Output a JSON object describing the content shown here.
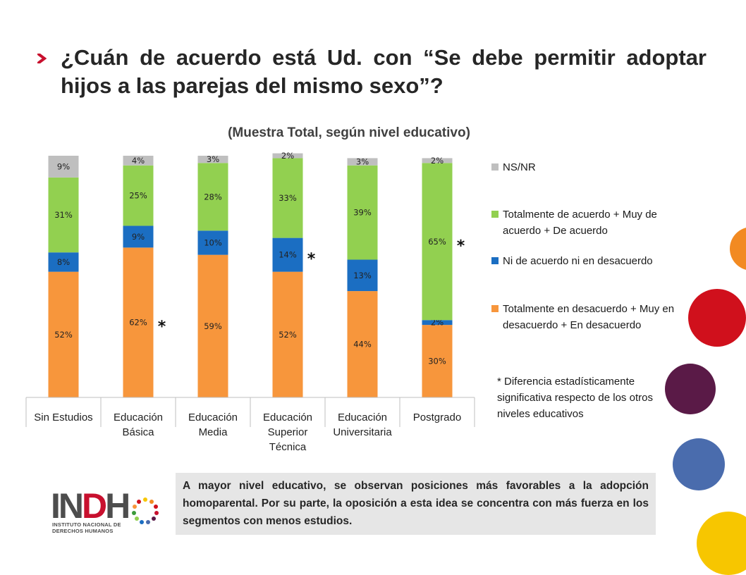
{
  "slide": {
    "title": "¿Cuán de acuerdo está Ud. con “Se debe permitir adoptar hijos a las parejas del mismo sexo”?",
    "note": "* Diferencia estadísticamente significativa respecto de los otros niveles educativos",
    "summary": "A mayor nivel educativo, se observan posiciones más favorables a la adopción homoparental. Por su parte, la oposición a esta idea se concentra con más fuerza en los segmentos con menos estudios.",
    "logo": {
      "word_gray_1": "IN",
      "word_red": "D",
      "word_gray_2": "H",
      "line1": "INSTITUTO NACIONAL DE",
      "line2": "DERECHOS HUMANOS"
    },
    "colors": {
      "accent_red": "#c8102e",
      "deco_orange": "#f28a22",
      "deco_red": "#d0101c",
      "deco_purple": "#5a1a47",
      "deco_blue": "#4a6cad",
      "deco_yellow": "#f7c600"
    }
  },
  "chart_data": {
    "type": "bar",
    "stacked": true,
    "title": "(Muestra Total, según nivel educativo)",
    "categories": [
      "Sin Estudios",
      "Educación Básica",
      "Educación Media",
      "Educación Superior Técnica",
      "Educación Universitaria",
      "Postgrado"
    ],
    "series": [
      {
        "name": "Totalmente en desacuerdo + Muy en desacuerdo + En desacuerdo",
        "color": "#f7963c",
        "values": [
          52,
          62,
          59,
          52,
          44,
          30
        ]
      },
      {
        "name": "Ni de acuerdo ni en desacuerdo",
        "color": "#1b6ec2",
        "values": [
          8,
          9,
          10,
          14,
          13,
          2
        ]
      },
      {
        "name": "Totalmente de acuerdo + Muy de acuerdo + De acuerdo",
        "color": "#92d050",
        "values": [
          31,
          25,
          28,
          33,
          39,
          65
        ]
      },
      {
        "name": "NS/NR",
        "color": "#bfbfbf",
        "values": [
          9,
          4,
          3,
          2,
          3,
          2
        ]
      }
    ],
    "markers": [
      {
        "category": "Educación Básica",
        "series": "Totalmente en desacuerdo + Muy en desacuerdo + En desacuerdo",
        "symbol": "*"
      },
      {
        "category": "Educación Superior Técnica",
        "series": "Ni de acuerdo ni en desacuerdo",
        "symbol": "*"
      },
      {
        "category": "Postgrado",
        "series": "Totalmente de acuerdo + Muy de acuerdo + De acuerdo",
        "symbol": "*"
      }
    ],
    "ylim": [
      0,
      100
    ],
    "legend_position": "right",
    "grid": false
  }
}
